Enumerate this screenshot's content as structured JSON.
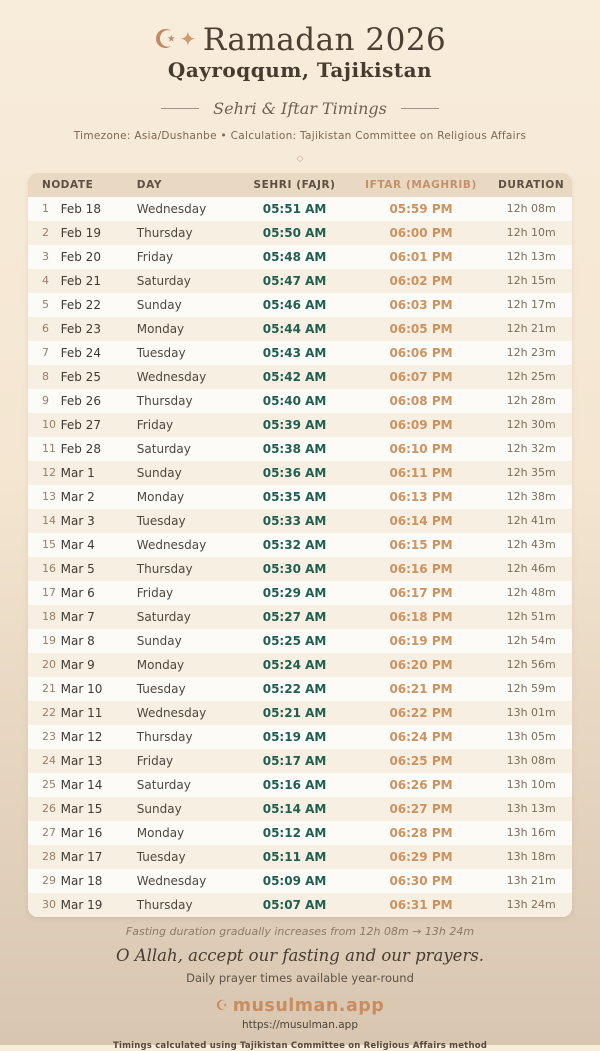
{
  "theme": {
    "sehri_color": "#1f5f52",
    "iftar_color": "#cc9260",
    "brand_color": "#c98d60",
    "header_band_color": "#ead9c2",
    "bg_top": "#f8ecdb",
    "bg_bottom": "#d8c6b0"
  },
  "header": {
    "crescent_icon": "☪",
    "sparkle_icon": "✦",
    "title": "Ramadan 2026",
    "location": "Qayroqqum, Tajikistan",
    "subtitle": "Sehri & Iftar Timings",
    "meta": "Timezone: Asia/Dushanbe • Calculation: Tajikistan Committee on Religious Affairs",
    "ornament": "◇"
  },
  "table": {
    "columns": [
      "NO.",
      "DATE",
      "DAY",
      "SEHRI (FAJR)",
      "IFTAR (MAGHRIB)",
      "DURATION"
    ],
    "rows": [
      [
        "1",
        "Feb 18",
        "Wednesday",
        "05:51 AM",
        "05:59 PM",
        "12h 08m"
      ],
      [
        "2",
        "Feb 19",
        "Thursday",
        "05:50 AM",
        "06:00 PM",
        "12h 10m"
      ],
      [
        "3",
        "Feb 20",
        "Friday",
        "05:48 AM",
        "06:01 PM",
        "12h 13m"
      ],
      [
        "4",
        "Feb 21",
        "Saturday",
        "05:47 AM",
        "06:02 PM",
        "12h 15m"
      ],
      [
        "5",
        "Feb 22",
        "Sunday",
        "05:46 AM",
        "06:03 PM",
        "12h 17m"
      ],
      [
        "6",
        "Feb 23",
        "Monday",
        "05:44 AM",
        "06:05 PM",
        "12h 21m"
      ],
      [
        "7",
        "Feb 24",
        "Tuesday",
        "05:43 AM",
        "06:06 PM",
        "12h 23m"
      ],
      [
        "8",
        "Feb 25",
        "Wednesday",
        "05:42 AM",
        "06:07 PM",
        "12h 25m"
      ],
      [
        "9",
        "Feb 26",
        "Thursday",
        "05:40 AM",
        "06:08 PM",
        "12h 28m"
      ],
      [
        "10",
        "Feb 27",
        "Friday",
        "05:39 AM",
        "06:09 PM",
        "12h 30m"
      ],
      [
        "11",
        "Feb 28",
        "Saturday",
        "05:38 AM",
        "06:10 PM",
        "12h 32m"
      ],
      [
        "12",
        "Mar 1",
        "Sunday",
        "05:36 AM",
        "06:11 PM",
        "12h 35m"
      ],
      [
        "13",
        "Mar 2",
        "Monday",
        "05:35 AM",
        "06:13 PM",
        "12h 38m"
      ],
      [
        "14",
        "Mar 3",
        "Tuesday",
        "05:33 AM",
        "06:14 PM",
        "12h 41m"
      ],
      [
        "15",
        "Mar 4",
        "Wednesday",
        "05:32 AM",
        "06:15 PM",
        "12h 43m"
      ],
      [
        "16",
        "Mar 5",
        "Thursday",
        "05:30 AM",
        "06:16 PM",
        "12h 46m"
      ],
      [
        "17",
        "Mar 6",
        "Friday",
        "05:29 AM",
        "06:17 PM",
        "12h 48m"
      ],
      [
        "18",
        "Mar 7",
        "Saturday",
        "05:27 AM",
        "06:18 PM",
        "12h 51m"
      ],
      [
        "19",
        "Mar 8",
        "Sunday",
        "05:25 AM",
        "06:19 PM",
        "12h 54m"
      ],
      [
        "20",
        "Mar 9",
        "Monday",
        "05:24 AM",
        "06:20 PM",
        "12h 56m"
      ],
      [
        "21",
        "Mar 10",
        "Tuesday",
        "05:22 AM",
        "06:21 PM",
        "12h 59m"
      ],
      [
        "22",
        "Mar 11",
        "Wednesday",
        "05:21 AM",
        "06:22 PM",
        "13h 01m"
      ],
      [
        "23",
        "Mar 12",
        "Thursday",
        "05:19 AM",
        "06:24 PM",
        "13h 05m"
      ],
      [
        "24",
        "Mar 13",
        "Friday",
        "05:17 AM",
        "06:25 PM",
        "13h 08m"
      ],
      [
        "25",
        "Mar 14",
        "Saturday",
        "05:16 AM",
        "06:26 PM",
        "13h 10m"
      ],
      [
        "26",
        "Mar 15",
        "Sunday",
        "05:14 AM",
        "06:27 PM",
        "13h 13m"
      ],
      [
        "27",
        "Mar 16",
        "Monday",
        "05:12 AM",
        "06:28 PM",
        "13h 16m"
      ],
      [
        "28",
        "Mar 17",
        "Tuesday",
        "05:11 AM",
        "06:29 PM",
        "13h 18m"
      ],
      [
        "29",
        "Mar 18",
        "Wednesday",
        "05:09 AM",
        "06:30 PM",
        "13h 21m"
      ],
      [
        "30",
        "Mar 19",
        "Thursday",
        "05:07 AM",
        "06:31 PM",
        "13h 24m"
      ]
    ]
  },
  "footer": {
    "fasting_note": "Fasting duration gradually increases from 12h 08m → 13h 24m",
    "dua": "O Allah, accept our fasting and our prayers.",
    "availability": "Daily prayer times available year-round",
    "brand_icon": "☪",
    "brand_name": "musulman.app",
    "brand_url": "https://musulman.app",
    "method_note": "Timings calculated using Tajikistan Committee on Religious Affairs method"
  }
}
